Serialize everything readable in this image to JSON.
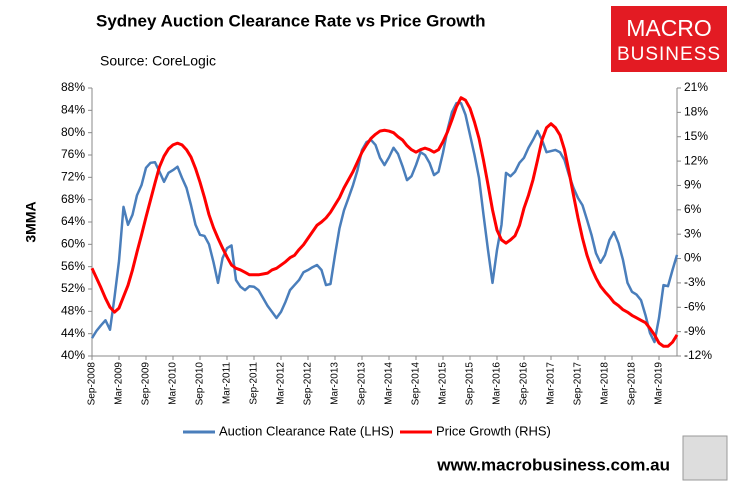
{
  "chart_data": {
    "type": "line",
    "title": "Sydney Auction Clearance Rate vs Price Growth",
    "subtitle": "Source: CoreLogic",
    "y_label": "3MMA",
    "logo_text": [
      "MACRO",
      "BUSINESS"
    ],
    "footer": "www.macrobusiness.com.au",
    "categories": [
      "Sep-2008",
      null,
      null,
      null,
      null,
      null,
      "Mar-2009",
      null,
      null,
      null,
      null,
      null,
      "Sep-2009",
      null,
      null,
      null,
      null,
      null,
      "Mar-2010",
      null,
      null,
      null,
      null,
      null,
      "Sep-2010",
      null,
      null,
      null,
      null,
      null,
      "Mar-2011",
      null,
      null,
      null,
      null,
      null,
      "Sep-2011",
      null,
      null,
      null,
      null,
      null,
      "Mar-2012",
      null,
      null,
      null,
      null,
      null,
      "Sep-2012",
      null,
      null,
      null,
      null,
      null,
      "Mar-2013",
      null,
      null,
      null,
      null,
      null,
      "Sep-2013",
      null,
      null,
      null,
      null,
      null,
      "Mar-2014",
      null,
      null,
      null,
      null,
      null,
      "Sep-2014",
      null,
      null,
      null,
      null,
      null,
      "Mar-2015",
      null,
      null,
      null,
      null,
      null,
      "Sep-2015",
      null,
      null,
      null,
      null,
      null,
      "Mar-2016",
      null,
      null,
      null,
      null,
      null,
      "Sep-2016",
      null,
      null,
      null,
      null,
      null,
      "Mar-2017",
      null,
      null,
      null,
      null,
      null,
      "Sep-2017",
      null,
      null,
      null,
      null,
      null,
      "Mar-2018",
      null,
      null,
      null,
      null,
      null,
      "Sep-2018",
      null,
      null,
      null,
      null,
      null,
      "Mar-2019",
      null,
      null,
      null,
      null
    ],
    "series": [
      {
        "name": "Auction Clearance Rate (LHS)",
        "color": "#4a7ebb",
        "axis": "y",
        "values": [
          43.2,
          44.5,
          45.5,
          46.4,
          44.7,
          50.5,
          57,
          66.7,
          63.5,
          65.3,
          68.8,
          70.6,
          73.7,
          74.6,
          74.7,
          73,
          71.2,
          72.8,
          73.3,
          73.9,
          71.9,
          70.1,
          67,
          63.5,
          61.7,
          61.5,
          60,
          56.8,
          53.1,
          57.5,
          59.3,
          59.8,
          53.6,
          52.4,
          51.8,
          52.5,
          52.4,
          51.8,
          50.4,
          49,
          47.9,
          46.8,
          47.9,
          49.7,
          51.8,
          52.7,
          53.6,
          55,
          55.4,
          55.9,
          56.3,
          55.4,
          52.7,
          52.9,
          58.1,
          62.9,
          66.1,
          68.3,
          70.6,
          73.3,
          76.9,
          78.3,
          78.7,
          77.8,
          75.5,
          74.2,
          75.6,
          77.3,
          76.2,
          74,
          71.5,
          72.2,
          74.2,
          76.5,
          76,
          74.6,
          72.4,
          73,
          76.4,
          80.5,
          83.7,
          85.3,
          85.3,
          83.2,
          79.6,
          76,
          71.9,
          65.3,
          59,
          53.1,
          59,
          63.5,
          72.8,
          72.2,
          73,
          74.6,
          75.5,
          77.3,
          78.7,
          80.3,
          78.7,
          76.5,
          76.7,
          76.9,
          76.5,
          75.1,
          72.4,
          70.1,
          68.3,
          67,
          64.4,
          61.7,
          58.4,
          56.7,
          58.1,
          60.8,
          62.2,
          60.2,
          57.2,
          53.1,
          51.5,
          51,
          50,
          47.3,
          44.1,
          42.5,
          46.8,
          52.7,
          52.5,
          55.4,
          58.1
        ]
      },
      {
        "name": "Price Growth (RHS)",
        "color": "#ff0000",
        "axis": "y2",
        "values": [
          -1.2,
          -2.4,
          -3.6,
          -4.9,
          -6,
          -6.6,
          -6.1,
          -4.7,
          -3.3,
          -1.4,
          0.8,
          2.9,
          5.1,
          7.2,
          9.3,
          11.3,
          12.6,
          13.5,
          14,
          14.2,
          14,
          13.4,
          12.5,
          11.1,
          9.4,
          7.5,
          5.4,
          3.8,
          2.5,
          1.3,
          0.2,
          -0.8,
          -1.2,
          -1.4,
          -1.7,
          -2,
          -2,
          -2,
          -1.9,
          -1.8,
          -1.4,
          -1.2,
          -0.8,
          -0.4,
          0.1,
          0.4,
          1.1,
          1.7,
          2.5,
          3.3,
          4.1,
          4.5,
          5,
          5.7,
          6.6,
          7.5,
          8.7,
          9.7,
          10.7,
          11.9,
          13.1,
          14,
          14.8,
          15.3,
          15.7,
          15.8,
          15.7,
          15.5,
          15,
          14.6,
          13.9,
          13.4,
          13.1,
          13.4,
          13.6,
          13.4,
          13.1,
          13.4,
          14.4,
          15.6,
          17.1,
          18.7,
          19.8,
          19.5,
          18.5,
          16.8,
          14.8,
          12.1,
          9.1,
          6,
          3.5,
          2.3,
          1.9,
          2.3,
          2.8,
          4.1,
          6.2,
          7.8,
          9.7,
          12.1,
          14.6,
          16.1,
          16.6,
          16.1,
          15.2,
          13.4,
          10.7,
          7.8,
          5,
          2.5,
          0.4,
          -1.2,
          -2.4,
          -3.4,
          -4.1,
          -4.7,
          -5.4,
          -5.8,
          -6.3,
          -6.6,
          -7,
          -7.3,
          -7.6,
          -7.9,
          -8.6,
          -9.4,
          -10.4,
          -10.8,
          -10.8,
          -10.3,
          -9.4
        ]
      }
    ],
    "ylim": [
      40,
      88
    ],
    "yticks": [
      {
        "value": 40,
        "label": "40%"
      },
      {
        "value": 44,
        "label": "44%"
      },
      {
        "value": 48,
        "label": "48%"
      },
      {
        "value": 52,
        "label": "52%"
      },
      {
        "value": 56,
        "label": "56%"
      },
      {
        "value": 60,
        "label": "60%"
      },
      {
        "value": 64,
        "label": "64%"
      },
      {
        "value": 68,
        "label": "68%"
      },
      {
        "value": 72,
        "label": "72%"
      },
      {
        "value": 76,
        "label": "76%"
      },
      {
        "value": 80,
        "label": "80%"
      },
      {
        "value": 84,
        "label": "84%"
      },
      {
        "value": 88,
        "label": "88%"
      }
    ],
    "y2lim": [
      -12,
      21
    ],
    "y2ticks": [
      {
        "value": -12,
        "label": "-12%"
      },
      {
        "value": -9,
        "label": "-9%"
      },
      {
        "value": -6,
        "label": "-6%"
      },
      {
        "value": -3,
        "label": "-3%"
      },
      {
        "value": 0,
        "label": "0%"
      },
      {
        "value": 3,
        "label": "3%"
      },
      {
        "value": 6,
        "label": "6%"
      },
      {
        "value": 9,
        "label": "9%"
      },
      {
        "value": 12,
        "label": "12%"
      },
      {
        "value": 15,
        "label": "15%"
      },
      {
        "value": 18,
        "label": "18%"
      },
      {
        "value": 21,
        "label": "21%"
      }
    ],
    "grid": false,
    "legend": "bottom"
  }
}
